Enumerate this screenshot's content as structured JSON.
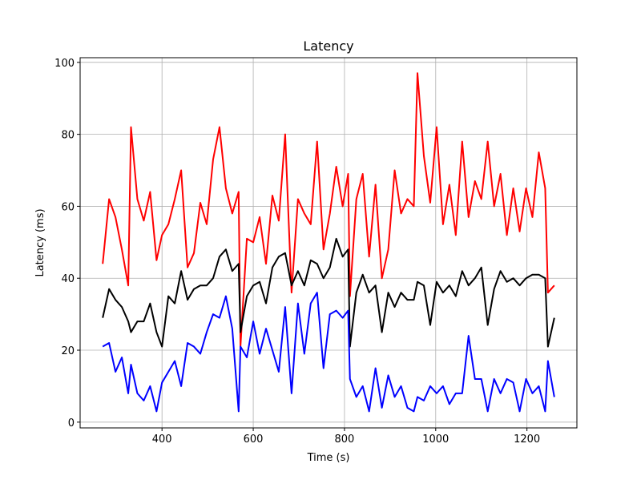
{
  "chart_data": {
    "type": "line",
    "title": "Latency",
    "xlabel": "Time (s)",
    "ylabel": "Latency (ms)",
    "x": [
      270,
      284,
      298,
      312,
      326,
      332,
      346,
      360,
      374,
      388,
      400,
      414,
      428,
      442,
      456,
      470,
      484,
      498,
      512,
      526,
      540,
      554,
      568,
      572,
      586,
      600,
      614,
      628,
      642,
      656,
      670,
      684,
      698,
      712,
      726,
      740,
      754,
      768,
      782,
      796,
      808,
      812,
      826,
      840,
      854,
      868,
      882,
      896,
      910,
      924,
      938,
      952,
      960,
      974,
      988,
      1002,
      1016,
      1030,
      1044,
      1058,
      1072,
      1086,
      1100,
      1114,
      1128,
      1142,
      1156,
      1170,
      1184,
      1198,
      1212,
      1226,
      1240,
      1246,
      1260
    ],
    "series": [
      {
        "color": "#ff0000",
        "values": [
          44,
          62,
          57,
          48,
          38,
          82,
          62,
          56,
          64,
          45,
          52,
          55,
          62,
          70,
          43,
          47,
          61,
          55,
          73,
          82,
          65,
          58,
          64,
          21,
          51,
          50,
          57,
          44,
          63,
          56,
          80,
          36,
          62,
          58,
          55,
          78,
          48,
          58,
          71,
          60,
          69,
          35,
          62,
          69,
          46,
          66,
          40,
          48,
          70,
          58,
          62,
          60,
          97,
          74,
          61,
          82,
          55,
          66,
          52,
          78,
          57,
          67,
          62,
          78,
          60,
          69,
          52,
          65,
          53,
          65,
          57,
          75,
          65,
          36,
          38
        ]
      },
      {
        "color": "#000000",
        "values": [
          29,
          37,
          34,
          32,
          28,
          25,
          28,
          28,
          33,
          25,
          21,
          35,
          33,
          42,
          34,
          37,
          38,
          38,
          40,
          46,
          48,
          42,
          44,
          25,
          35,
          38,
          39,
          33,
          43,
          46,
          47,
          38,
          42,
          38,
          45,
          44,
          40,
          43,
          51,
          46,
          48,
          21,
          36,
          41,
          36,
          38,
          25,
          36,
          32,
          36,
          34,
          34,
          39,
          38,
          27,
          39,
          36,
          38,
          35,
          42,
          38,
          40,
          43,
          27,
          37,
          42,
          39,
          40,
          38,
          40,
          41,
          41,
          40,
          21,
          29
        ]
      },
      {
        "color": "#0000ff",
        "values": [
          21,
          22,
          14,
          18,
          8,
          16,
          8,
          6,
          10,
          3,
          11,
          14,
          17,
          10,
          22,
          21,
          19,
          25,
          30,
          29,
          35,
          26,
          3,
          21,
          18,
          28,
          19,
          26,
          20,
          14,
          32,
          8,
          33,
          19,
          33,
          36,
          15,
          30,
          31,
          29,
          31,
          12,
          7,
          10,
          3,
          15,
          4,
          13,
          7,
          10,
          4,
          3,
          7,
          6,
          10,
          8,
          10,
          5,
          8,
          8,
          24,
          12,
          12,
          3,
          12,
          8,
          12,
          11,
          3,
          12,
          8,
          10,
          3,
          17,
          7
        ]
      }
    ],
    "xlim": [
      220.5,
      1309.5
    ],
    "ylim": [
      -1.6,
      101.3
    ],
    "xticks": [
      400,
      600,
      800,
      1000,
      1200
    ],
    "yticks": [
      0,
      20,
      40,
      60,
      80,
      100
    ],
    "grid": true
  }
}
